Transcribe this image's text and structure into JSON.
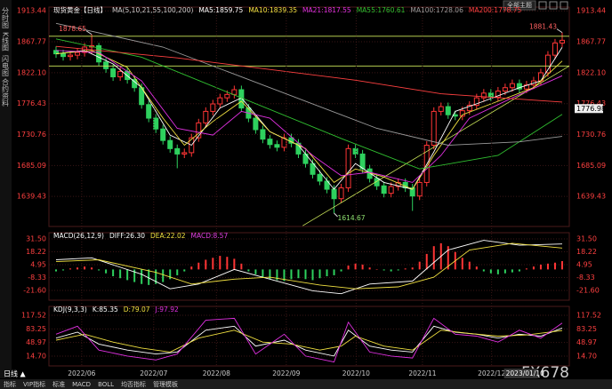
{
  "chart_data": [
    {
      "type": "candlestick",
      "title": "现货黄金【日线】",
      "subtitle": "MA(5,10,21,55,100,200)",
      "candles": {
        "open": [
          1855,
          1850,
          1846,
          1848,
          1852,
          1860,
          1862,
          1838,
          1828,
          1816,
          1824,
          1812,
          1800,
          1775,
          1755,
          1739,
          1722,
          1710,
          1702,
          1704,
          1726,
          1748,
          1765,
          1776,
          1785,
          1790,
          1797,
          1770,
          1755,
          1738,
          1724,
          1716,
          1712,
          1726,
          1718,
          1702,
          1688,
          1672,
          1662,
          1650,
          1636,
          1652,
          1710,
          1702,
          1680,
          1666,
          1655,
          1644,
          1654,
          1660,
          1652,
          1640,
          1660,
          1715,
          1765,
          1772,
          1760,
          1758,
          1766,
          1774,
          1785,
          1792,
          1786,
          1795,
          1800,
          1806,
          1798,
          1804,
          1810,
          1822,
          1848,
          1866
        ],
        "high": [
          1861,
          1856,
          1854,
          1858,
          1866,
          1878.65,
          1866,
          1844,
          1834,
          1830,
          1830,
          1818,
          1806,
          1781,
          1761,
          1745,
          1728,
          1716,
          1710,
          1732,
          1754,
          1771,
          1782,
          1791,
          1796,
          1803,
          1803,
          1776,
          1761,
          1744,
          1730,
          1722,
          1732,
          1732,
          1724,
          1708,
          1694,
          1678,
          1668,
          1656,
          1658,
          1716,
          1716,
          1708,
          1686,
          1672,
          1661,
          1660,
          1666,
          1666,
          1658,
          1666,
          1721,
          1771,
          1778,
          1778,
          1766,
          1772,
          1780,
          1791,
          1798,
          1798,
          1801,
          1806,
          1812,
          1812,
          1810,
          1816,
          1828,
          1854,
          1872,
          1881.43
        ],
        "low": [
          1844,
          1840,
          1840,
          1842,
          1846,
          1850,
          1832,
          1822,
          1810,
          1810,
          1806,
          1794,
          1769,
          1749,
          1733,
          1716,
          1704,
          1681,
          1696,
          1698,
          1720,
          1742,
          1759,
          1770,
          1779,
          1784,
          1764,
          1749,
          1732,
          1718,
          1710,
          1706,
          1706,
          1712,
          1696,
          1682,
          1666,
          1656,
          1644,
          1614.67,
          1630,
          1646,
          1696,
          1674,
          1660,
          1649,
          1638,
          1638,
          1648,
          1646,
          1618,
          1634,
          1654,
          1709,
          1759,
          1754,
          1752,
          1752,
          1760,
          1768,
          1779,
          1780,
          1780,
          1789,
          1794,
          1792,
          1792,
          1798,
          1804,
          1816,
          1842,
          1860
        ],
        "close": [
          1850,
          1846,
          1848,
          1852,
          1860,
          1862,
          1838,
          1828,
          1816,
          1824,
          1812,
          1800,
          1775,
          1755,
          1739,
          1722,
          1710,
          1702,
          1704,
          1726,
          1748,
          1765,
          1776,
          1785,
          1790,
          1797,
          1770,
          1755,
          1738,
          1724,
          1716,
          1712,
          1726,
          1718,
          1702,
          1688,
          1672,
          1662,
          1650,
          1636,
          1652,
          1710,
          1702,
          1680,
          1666,
          1655,
          1644,
          1654,
          1660,
          1652,
          1640,
          1660,
          1715,
          1765,
          1772,
          1760,
          1758,
          1766,
          1774,
          1785,
          1792,
          1786,
          1795,
          1800,
          1806,
          1798,
          1804,
          1810,
          1822,
          1848,
          1866,
          1870
        ]
      },
      "up_color": "#ff3535",
      "down_color": "#2ed15e",
      "series": [
        {
          "name": "MA5:1859.75",
          "color": "#ffffff",
          "x": [
            0,
            4,
            8,
            12,
            16,
            19,
            23,
            26,
            30,
            34,
            39,
            42,
            46,
            50,
            53,
            56,
            60,
            65,
            68,
            71
          ],
          "values": [
            1850,
            1855,
            1835,
            1800,
            1730,
            1715,
            1770,
            1785,
            1735,
            1715,
            1650,
            1688,
            1660,
            1650,
            1705,
            1765,
            1780,
            1800,
            1810,
            1859.75
          ]
        },
        {
          "name": "MA10:1839.35",
          "color": "#f0e040",
          "x": [
            0,
            5,
            10,
            15,
            18,
            22,
            26,
            30,
            35,
            39,
            42,
            46,
            50,
            53,
            57,
            62,
            67,
            71
          ],
          "values": [
            1850,
            1855,
            1830,
            1755,
            1715,
            1750,
            1780,
            1735,
            1710,
            1660,
            1680,
            1668,
            1650,
            1700,
            1760,
            1780,
            1800,
            1839.35
          ]
        },
        {
          "name": "MA21:1817.55",
          "color": "#e030e0",
          "x": [
            0,
            6,
            12,
            17,
            22,
            26,
            30,
            36,
            40,
            44,
            50,
            54,
            58,
            64,
            71
          ],
          "values": [
            1855,
            1852,
            1810,
            1740,
            1730,
            1765,
            1755,
            1700,
            1670,
            1675,
            1660,
            1700,
            1755,
            1785,
            1817.55
          ]
        },
        {
          "name": "MA55:1760.61",
          "color": "#30c030",
          "x": [
            0,
            12,
            26,
            40,
            51,
            62,
            71
          ],
          "values": [
            1872,
            1845,
            1785,
            1725,
            1680,
            1700,
            1760.61
          ]
        },
        {
          "name": "MA100:1728.06",
          "color": "#9a9a9a",
          "x": [
            0,
            15,
            30,
            45,
            55,
            65,
            71
          ],
          "values": [
            1895,
            1860,
            1800,
            1740,
            1715,
            1720,
            1728.06
          ]
        },
        {
          "name": "MA200:1778.75",
          "color": "#ff4040",
          "x": [
            0,
            17,
            42,
            54,
            71
          ],
          "values": [
            1861,
            1844,
            1811,
            1791,
            1778.75
          ]
        }
      ],
      "trend_lines": [
        {
          "x": [
            -1,
            72
          ],
          "values": [
            1876,
            1876
          ]
        },
        {
          "x": [
            -1,
            72
          ],
          "values": [
            1832,
            1832
          ]
        },
        {
          "x": [
            34.6,
            72
          ],
          "values": [
            1596,
            1832
          ]
        }
      ],
      "trend_color": "#cde85a",
      "marked_extremes": [
        1878.65,
        1614.67,
        1881.43
      ],
      "price_marker": 1776.98,
      "cursor_date": "2023/01/10",
      "xlim": [
        -1,
        72
      ],
      "ylim": [
        1595,
        1919
      ],
      "yticks": [
        1913.44,
        1867.77,
        {
          "value": 1822.1,
          "label": "1822.10"
        },
        1776.43,
        1730.76,
        1685.09,
        1639.43
      ],
      "xticks": [
        {
          "value": 3.6,
          "label": "2022/06"
        },
        {
          "value": 13.7,
          "label": "2022/07"
        },
        {
          "value": 22.5,
          "label": "2022/08"
        },
        {
          "value": 32.3,
          "label": "2022/09"
        },
        {
          "value": 42.1,
          "label": "2022/10"
        },
        {
          "value": 51.4,
          "label": "2022/11"
        },
        {
          "value": 61.1,
          "label": "2022/12"
        }
      ],
      "grid": true
    },
    {
      "type": "bar",
      "title": "MACD(26,12,9)",
      "name": "MACD:8.57",
      "legend_color": "#e040e0",
      "values": [
        -2,
        -1,
        1,
        2,
        3,
        2,
        -1,
        -4,
        -7,
        -9,
        -11,
        -13,
        -15,
        -16,
        -15,
        -13,
        -10,
        -6,
        -2,
        3,
        7,
        10,
        12,
        14,
        13,
        11,
        6,
        -2,
        -5,
        -8,
        -10,
        -11,
        -12,
        -10,
        -9,
        -10,
        -11,
        -9,
        -7,
        -6,
        -2,
        4,
        6,
        5,
        2,
        0,
        -1,
        -2,
        -1,
        1,
        2,
        8,
        16,
        24,
        27,
        24,
        18,
        12,
        8,
        3,
        -2,
        -4,
        -5,
        -4,
        -3,
        -2,
        1,
        3,
        5,
        6,
        7,
        8.57
      ],
      "up_color": "#ff3535",
      "down_color": "#2ed15e",
      "series": [
        {
          "name": "DIFF:26.30",
          "color": "#ffffff",
          "x": [
            0,
            5,
            12,
            16,
            20,
            25,
            30,
            36,
            40,
            44,
            50,
            55,
            60,
            65,
            71
          ],
          "values": [
            10,
            12,
            -5,
            -20,
            -15,
            0,
            -10,
            -22,
            -25,
            -15,
            -12,
            20,
            30,
            25,
            26.3
          ]
        },
        {
          "name": "DEA:22.02",
          "color": "#f0e040",
          "x": [
            0,
            6,
            14,
            19,
            25,
            30,
            37,
            42,
            48,
            53,
            58,
            64,
            71
          ],
          "values": [
            8,
            10,
            -3,
            -15,
            -10,
            -8,
            -16,
            -20,
            -18,
            -8,
            20,
            27,
            22.02
          ]
        }
      ],
      "xlim": [
        -1,
        72
      ],
      "ylim": [
        -31.7,
        37.9
      ],
      "yticks": [
        {
          "value": 31.5,
          "label": "31.50"
        },
        18.22,
        4.95,
        -8.33,
        {
          "value": -21.6,
          "label": "-21.60"
        }
      ],
      "grid": true
    },
    {
      "type": "line",
      "title": "KDJ(9,3,3)",
      "series": [
        {
          "name": "K:85.35",
          "color": "#ffffff",
          "x": [
            0,
            3,
            6,
            10,
            14,
            17,
            21,
            25,
            28,
            32,
            35,
            39,
            41,
            44,
            47,
            50,
            53,
            56,
            59,
            62,
            65,
            68,
            71
          ],
          "values": [
            60,
            75,
            45,
            30,
            20,
            25,
            80,
            90,
            40,
            55,
            30,
            15,
            80,
            40,
            30,
            25,
            90,
            75,
            70,
            60,
            70,
            65,
            85.35
          ]
        },
        {
          "name": "D:79.07",
          "color": "#f0e040",
          "x": [
            0,
            4,
            8,
            12,
            16,
            20,
            25,
            29,
            33,
            37,
            40,
            42,
            46,
            50,
            54,
            58,
            62,
            66,
            71
          ],
          "values": [
            55,
            70,
            50,
            35,
            25,
            60,
            80,
            50,
            45,
            30,
            40,
            65,
            40,
            30,
            80,
            72,
            65,
            68,
            79.07
          ]
        },
        {
          "name": "J:97.92",
          "color": "#e030e0",
          "x": [
            0,
            3,
            6,
            10,
            14,
            17,
            21,
            25,
            28,
            32,
            35,
            39,
            41,
            44,
            47,
            50,
            53,
            56,
            59,
            62,
            65,
            68,
            71
          ],
          "values": [
            70,
            90,
            30,
            15,
            5,
            20,
            105,
            110,
            20,
            70,
            15,
            0,
            100,
            25,
            15,
            10,
            110,
            70,
            65,
            50,
            80,
            60,
            97.92
          ]
        }
      ],
      "xlim": [
        -1,
        72
      ],
      "ylim": [
        -9.9,
        139.9
      ],
      "yticks": [
        117.52,
        83.25,
        48.97,
        {
          "value": 14.7,
          "label": "14.70"
        }
      ],
      "grid": true
    }
  ],
  "ui": {
    "sidebar": [
      "分时图",
      "K线图",
      "闪电图",
      "合约资料"
    ],
    "theme_button": "全部主题",
    "period": "日线 ▲",
    "toolbar": [
      "指标",
      "VIP指标",
      "标准",
      "MACD",
      "BOLL",
      "均否指标",
      "管理模板"
    ],
    "watermark": "FX678"
  }
}
